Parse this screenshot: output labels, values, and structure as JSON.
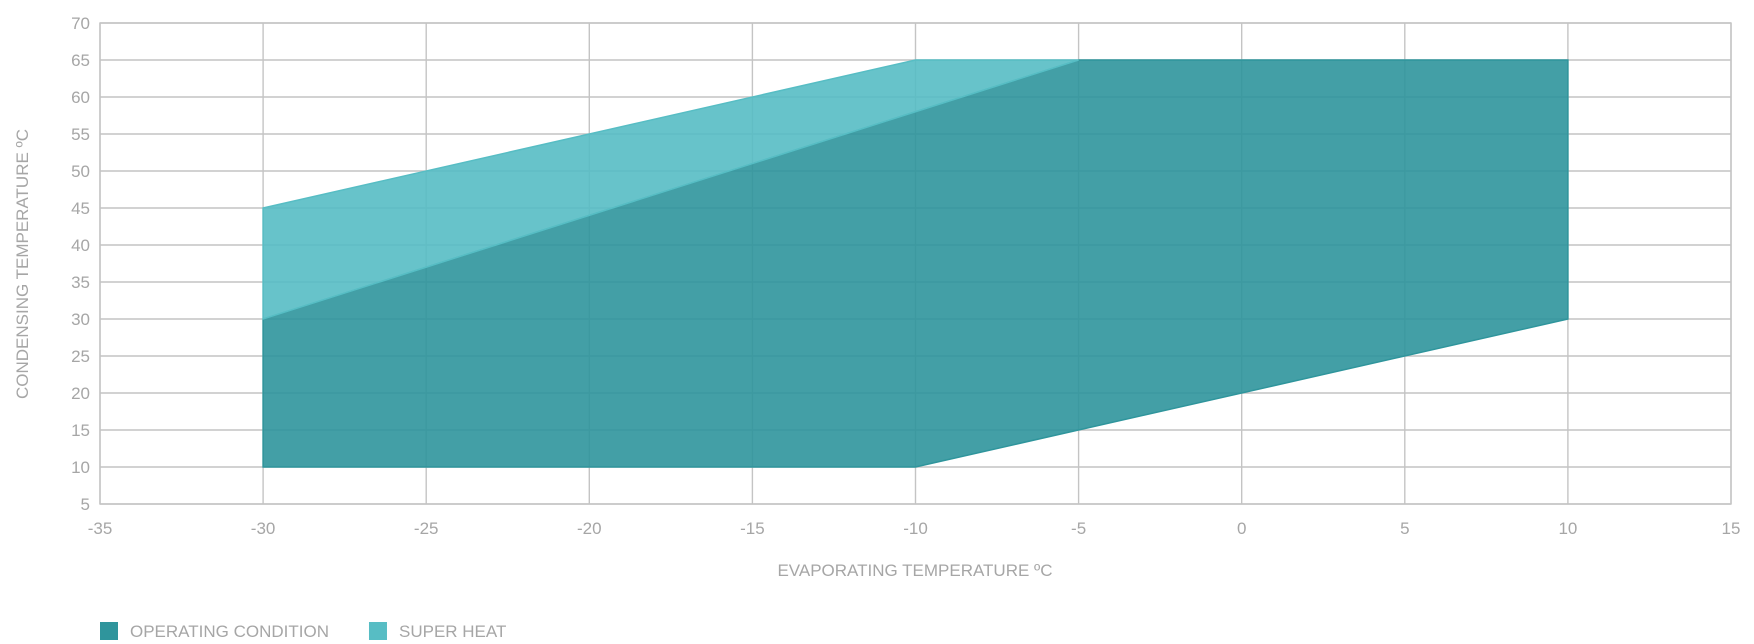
{
  "chart_data": {
    "type": "area",
    "xlabel": "EVAPORATING TEMPERATURE ºC",
    "ylabel": "CONDENSING TEMPERATURE ºC",
    "xlim": [
      -35,
      15
    ],
    "ylim": [
      5,
      70
    ],
    "x_ticks": [
      -35,
      -30,
      -25,
      -20,
      -15,
      -10,
      -5,
      0,
      5,
      10,
      15
    ],
    "y_ticks": [
      5,
      10,
      15,
      20,
      25,
      30,
      35,
      40,
      45,
      50,
      55,
      60,
      65,
      70
    ],
    "grid": true,
    "legend_position": "bottom-left",
    "series": [
      {
        "name": "OPERATING CONDITION",
        "color": "#2f959c",
        "points": [
          [
            -30,
            10
          ],
          [
            -10,
            10
          ],
          [
            10,
            30
          ],
          [
            10,
            65
          ],
          [
            -5,
            65
          ],
          [
            -30,
            30
          ]
        ]
      },
      {
        "name": "SUPER HEAT",
        "color": "#57bdc4",
        "points": [
          [
            -30,
            30
          ],
          [
            -30,
            45
          ],
          [
            -10,
            65
          ],
          [
            -5,
            65
          ]
        ]
      }
    ]
  }
}
